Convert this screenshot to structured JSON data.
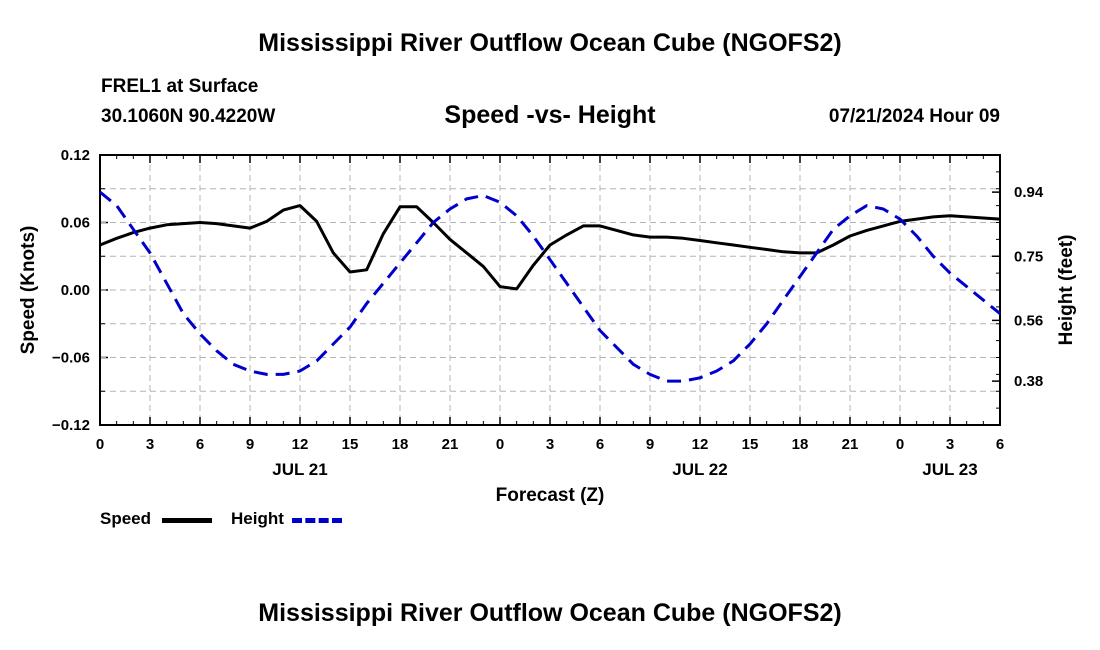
{
  "header": {
    "main_title": "Mississippi River Outflow Ocean Cube (NGOFS2)",
    "station": "FREL1 at Surface",
    "coords": "30.1060N  90.4220W",
    "chart_title": "Speed -vs- Height",
    "datetime": "07/21/2024 Hour 09"
  },
  "footer": {
    "title": "Mississippi River Outflow Ocean Cube (NGOFS2)"
  },
  "legend": {
    "speed_label": "Speed",
    "height_label": "Height"
  },
  "colors": {
    "speed": "#000000",
    "height": "#0000cc",
    "grid": "#b4b4b4"
  },
  "chart_data": {
    "type": "line",
    "xlabel": "Forecast (Z)",
    "ylabel": "Speed (Knots)",
    "y2label": "Height (feet)",
    "x_hours_range": [
      0,
      54
    ],
    "ylim": [
      -0.12,
      0.12
    ],
    "y2lim": [
      0.25,
      1.05
    ],
    "yticks": [
      0.12,
      0.06,
      0.0,
      -0.06,
      -0.12
    ],
    "ytick_labels": [
      "0.12",
      "0.06",
      "0.00",
      "−0.06",
      "−0.12"
    ],
    "y2ticks": [
      0.94,
      0.75,
      0.56,
      0.38
    ],
    "y2tick_labels": [
      "0.94",
      "0.75",
      "0.56",
      "0.38"
    ],
    "xticks": [
      0,
      3,
      6,
      9,
      12,
      15,
      18,
      21,
      24,
      27,
      30,
      33,
      36,
      39,
      42,
      45,
      48,
      51,
      54
    ],
    "xtick_labels": [
      "0",
      "3",
      "6",
      "9",
      "12",
      "15",
      "18",
      "21",
      "0",
      "3",
      "6",
      "9",
      "12",
      "15",
      "18",
      "21",
      "0",
      "3",
      "6"
    ],
    "date_labels": [
      {
        "text": "JUL 21",
        "hour": 12
      },
      {
        "text": "JUL 22",
        "hour": 36
      },
      {
        "text": "JUL 23",
        "hour": 51
      }
    ],
    "series": [
      {
        "name": "Speed",
        "axis": "left",
        "style": "solid",
        "x": [
          0,
          1,
          2,
          3,
          4,
          5,
          6,
          7,
          8,
          9,
          10,
          11,
          12,
          13,
          14,
          15,
          16,
          17,
          18,
          19,
          20,
          21,
          22,
          23,
          24,
          25,
          26,
          27,
          28,
          29,
          30,
          31,
          32,
          33,
          34,
          35,
          36,
          37,
          38,
          39,
          40,
          41,
          42,
          43,
          44,
          45,
          46,
          47,
          48,
          49,
          50,
          51,
          52,
          53,
          54
        ],
        "values": [
          0.04,
          0.046,
          0.051,
          0.055,
          0.058,
          0.059,
          0.06,
          0.059,
          0.057,
          0.055,
          0.061,
          0.071,
          0.075,
          0.061,
          0.033,
          0.016,
          0.018,
          0.05,
          0.074,
          0.074,
          0.06,
          0.045,
          0.033,
          0.021,
          0.003,
          0.001,
          0.022,
          0.04,
          0.049,
          0.057,
          0.057,
          0.053,
          0.049,
          0.047,
          0.047,
          0.046,
          0.044,
          0.042,
          0.04,
          0.038,
          0.036,
          0.034,
          0.033,
          0.033,
          0.04,
          0.048,
          0.053,
          0.057,
          0.061,
          0.063,
          0.065,
          0.066,
          0.065,
          0.064,
          0.063
        ]
      },
      {
        "name": "Height",
        "axis": "right",
        "style": "dashed",
        "x": [
          0,
          1,
          2,
          3,
          4,
          5,
          6,
          7,
          8,
          9,
          10,
          11,
          12,
          13,
          14,
          15,
          16,
          17,
          18,
          19,
          20,
          21,
          22,
          23,
          24,
          25,
          26,
          27,
          28,
          29,
          30,
          31,
          32,
          33,
          34,
          35,
          36,
          37,
          38,
          39,
          40,
          41,
          42,
          43,
          44,
          45,
          46,
          47,
          48,
          49,
          50,
          51,
          52,
          53,
          54
        ],
        "values": [
          0.94,
          0.9,
          0.83,
          0.76,
          0.67,
          0.58,
          0.52,
          0.47,
          0.43,
          0.41,
          0.4,
          0.4,
          0.41,
          0.44,
          0.49,
          0.54,
          0.61,
          0.67,
          0.73,
          0.79,
          0.85,
          0.89,
          0.92,
          0.93,
          0.91,
          0.87,
          0.81,
          0.74,
          0.67,
          0.6,
          0.53,
          0.48,
          0.43,
          0.4,
          0.38,
          0.38,
          0.39,
          0.41,
          0.44,
          0.49,
          0.55,
          0.62,
          0.69,
          0.76,
          0.83,
          0.87,
          0.9,
          0.89,
          0.86,
          0.81,
          0.75,
          0.7,
          0.66,
          0.62,
          0.58
        ]
      }
    ]
  }
}
